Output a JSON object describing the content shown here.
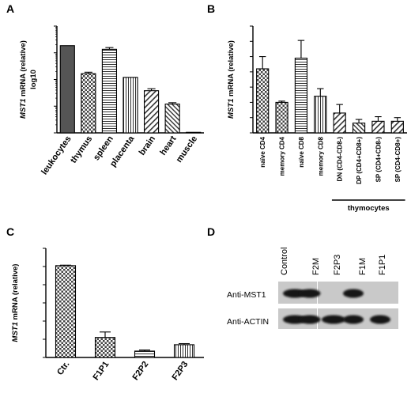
{
  "panels": {
    "A": {
      "label": "A"
    },
    "B": {
      "label": "B"
    },
    "C": {
      "label": "C"
    },
    "D": {
      "label": "D"
    }
  },
  "chart_data": [
    {
      "panel": "A",
      "type": "bar",
      "ylabel_italic": "MST1",
      "ylabel_rest": " mRNA (relative)",
      "ylabel_line2": "log10",
      "yscale": "log",
      "ylim": [
        1,
        10000
      ],
      "yticks": [
        "1",
        "10",
        "100",
        "1000",
        "10000"
      ],
      "categories": [
        "leukocytes",
        "thymus",
        "spleen",
        "placenta",
        "brain",
        "heart",
        "muscle"
      ],
      "values": [
        1850,
        165,
        1350,
        120,
        38,
        12,
        1.05
      ],
      "errors": [
        0,
        22,
        220,
        0,
        7,
        1.5,
        0
      ],
      "patterns": [
        "dark",
        "check",
        "hline",
        "vline",
        "diag",
        "diag2",
        "plain"
      ]
    },
    {
      "panel": "B",
      "type": "bar",
      "ylabel_italic": "MST1",
      "ylabel_rest": " mRNA (relative)",
      "ylim": [
        0,
        3.5
      ],
      "yticks": [
        "0.0",
        "0.5",
        "1.0",
        "1.5",
        "2.0",
        "2.5",
        "3.0",
        "3.5"
      ],
      "categories": [
        "naïve CD4",
        "memory CD4",
        "naïve CD8",
        "memory CD8",
        "DN (CD4-CD8-)",
        "DP (CD4+CD8+)",
        "SP (CD4+CD8-)",
        "SP (CD4-CD8+)"
      ],
      "values": [
        2.1,
        1.0,
        2.45,
        1.2,
        0.65,
        0.32,
        0.38,
        0.38
      ],
      "errors": [
        0.4,
        0.04,
        0.58,
        0.25,
        0.28,
        0.12,
        0.15,
        0.12
      ],
      "patterns": [
        "check",
        "check",
        "hline",
        "vline",
        "diag",
        "diag2",
        "diag",
        "diag"
      ],
      "group_label": "thymocytes"
    },
    {
      "panel": "C",
      "type": "bar",
      "ylabel_italic": "MST1",
      "ylabel_rest": " mRNA (relative)",
      "ylim": [
        0,
        1.2
      ],
      "yticks": [
        "0.0",
        "0.2",
        "0.4",
        "0.6",
        "0.8",
        "1.0",
        "1.2"
      ],
      "categories": [
        "Ctr.",
        "F1P1",
        "F2P2",
        "F2P3"
      ],
      "values": [
        1.01,
        0.22,
        0.07,
        0.14
      ],
      "errors": [
        0.005,
        0.06,
        0.012,
        0.012
      ],
      "patterns": [
        "check",
        "check",
        "hline",
        "vline"
      ]
    }
  ],
  "blot": {
    "lanes": [
      "Control",
      "F2M",
      "F2P3",
      "F1M",
      "F1P1"
    ],
    "rows": [
      {
        "label": "Anti-MST1",
        "bands": [
          1,
          1,
          0,
          1,
          0
        ]
      },
      {
        "label": "Anti-ACTIN",
        "bands": [
          1,
          1,
          1,
          1,
          1
        ]
      }
    ],
    "colors": {
      "membrane": "#c9c9c9",
      "band": "#161616"
    }
  }
}
